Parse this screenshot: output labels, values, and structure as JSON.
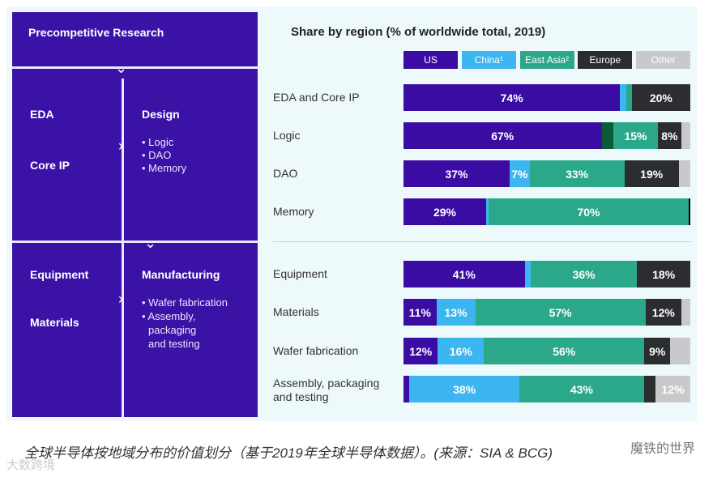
{
  "left_panel": {
    "header": "Precompetitive Research",
    "eda": "EDA",
    "core_ip": "Core IP",
    "design": "Design",
    "design_items": [
      "• Logic",
      "• DAO",
      "• Memory"
    ],
    "equipment": "Equipment",
    "materials": "Materials",
    "manufacturing": "Manufacturing",
    "manufacturing_items": [
      "• Wafer fabrication",
      "• Assembly,",
      "packaging",
      "and testing"
    ]
  },
  "chart_data": {
    "type": "bar",
    "orientation": "horizontal-stacked-100",
    "title": "Share by region (% of worldwide total, 2019)",
    "legend": [
      {
        "name": "US",
        "color": "#3a0ca3",
        "text": "#ffffff"
      },
      {
        "name": "China¹",
        "color": "#3cb6f0",
        "text": "#ffffff"
      },
      {
        "name": "East Asia²",
        "color": "#2aa889",
        "text": "#ffffff"
      },
      {
        "name": "Europe",
        "color": "#2b2d31",
        "text": "#ffffff"
      },
      {
        "name": "Other",
        "color": "#c9c9cb",
        "text": "#ffffff"
      }
    ],
    "categories": [
      "EDA and Core IP",
      "Logic",
      "DAO",
      "Memory",
      "Equipment",
      "Materials",
      "Wafer fabrication",
      "Assembly, packaging and testing"
    ],
    "rows": [
      {
        "label": "EDA and Core IP",
        "segments": [
          {
            "s": 0,
            "v": 74,
            "t": "74%"
          },
          {
            "s": 1,
            "v": 2
          },
          {
            "s": 2,
            "v": 2
          },
          {
            "s": 3,
            "v": 20,
            "t": "20%"
          }
        ]
      },
      {
        "label": "Logic",
        "segments": [
          {
            "s": 0,
            "v": 67,
            "t": "67%"
          },
          {
            "s": 2,
            "v": 4,
            "color": "#0b5a3a"
          },
          {
            "s": 2,
            "v": 15,
            "t": "15%"
          },
          {
            "s": 3,
            "v": 8,
            "t": "8%"
          },
          {
            "s": 4,
            "v": 3
          }
        ]
      },
      {
        "label": "DAO",
        "segments": [
          {
            "s": 0,
            "v": 37,
            "t": "37%"
          },
          {
            "s": 1,
            "v": 7,
            "t": "7%"
          },
          {
            "s": 2,
            "v": 33,
            "t": "33%"
          },
          {
            "s": 3,
            "v": 19,
            "t": "19%"
          },
          {
            "s": 4,
            "v": 4
          }
        ]
      },
      {
        "label": "Memory",
        "segments": [
          {
            "s": 0,
            "v": 29,
            "t": "29%"
          },
          {
            "s": 1,
            "v": 1
          },
          {
            "s": 2,
            "v": 70,
            "t": "70%"
          },
          {
            "s": 3,
            "v": 0.7,
            "color": "#000000"
          }
        ]
      },
      {
        "label": "Equipment",
        "segments": [
          {
            "s": 0,
            "v": 41,
            "t": "41%"
          },
          {
            "s": 1,
            "v": 2
          },
          {
            "s": 2,
            "v": 36,
            "t": "36%"
          },
          {
            "s": 3,
            "v": 18,
            "t": "18%"
          }
        ]
      },
      {
        "label": "Materials",
        "segments": [
          {
            "s": 0,
            "v": 11,
            "t": "11%"
          },
          {
            "s": 1,
            "v": 13,
            "t": "13%"
          },
          {
            "s": 2,
            "v": 57,
            "t": "57%"
          },
          {
            "s": 3,
            "v": 12,
            "t": "12%"
          },
          {
            "s": 4,
            "v": 3
          }
        ]
      },
      {
        "label": "Wafer fabrication",
        "segments": [
          {
            "s": 0,
            "v": 12,
            "t": "12%"
          },
          {
            "s": 1,
            "v": 16,
            "t": "16%"
          },
          {
            "s": 2,
            "v": 56,
            "t": "56%"
          },
          {
            "s": 3,
            "v": 9,
            "t": "9%"
          },
          {
            "s": 4,
            "v": 7
          }
        ]
      },
      {
        "label": "Assembly, packaging and testing",
        "segments": [
          {
            "s": 0,
            "v": 2
          },
          {
            "s": 1,
            "v": 38,
            "t": "38%"
          },
          {
            "s": 2,
            "v": 43,
            "t": "43%"
          },
          {
            "s": 3,
            "v": 4
          },
          {
            "s": 4,
            "v": 12,
            "t": "12%"
          }
        ]
      }
    ],
    "xlim": [
      0,
      100
    ]
  },
  "caption": "全球半导体按地域分布的价值划分（基于2019年全球半导体数据）。(来源：SIA & BCG)",
  "watermarks": [
    "魔铁的世界",
    "大数跨境"
  ]
}
